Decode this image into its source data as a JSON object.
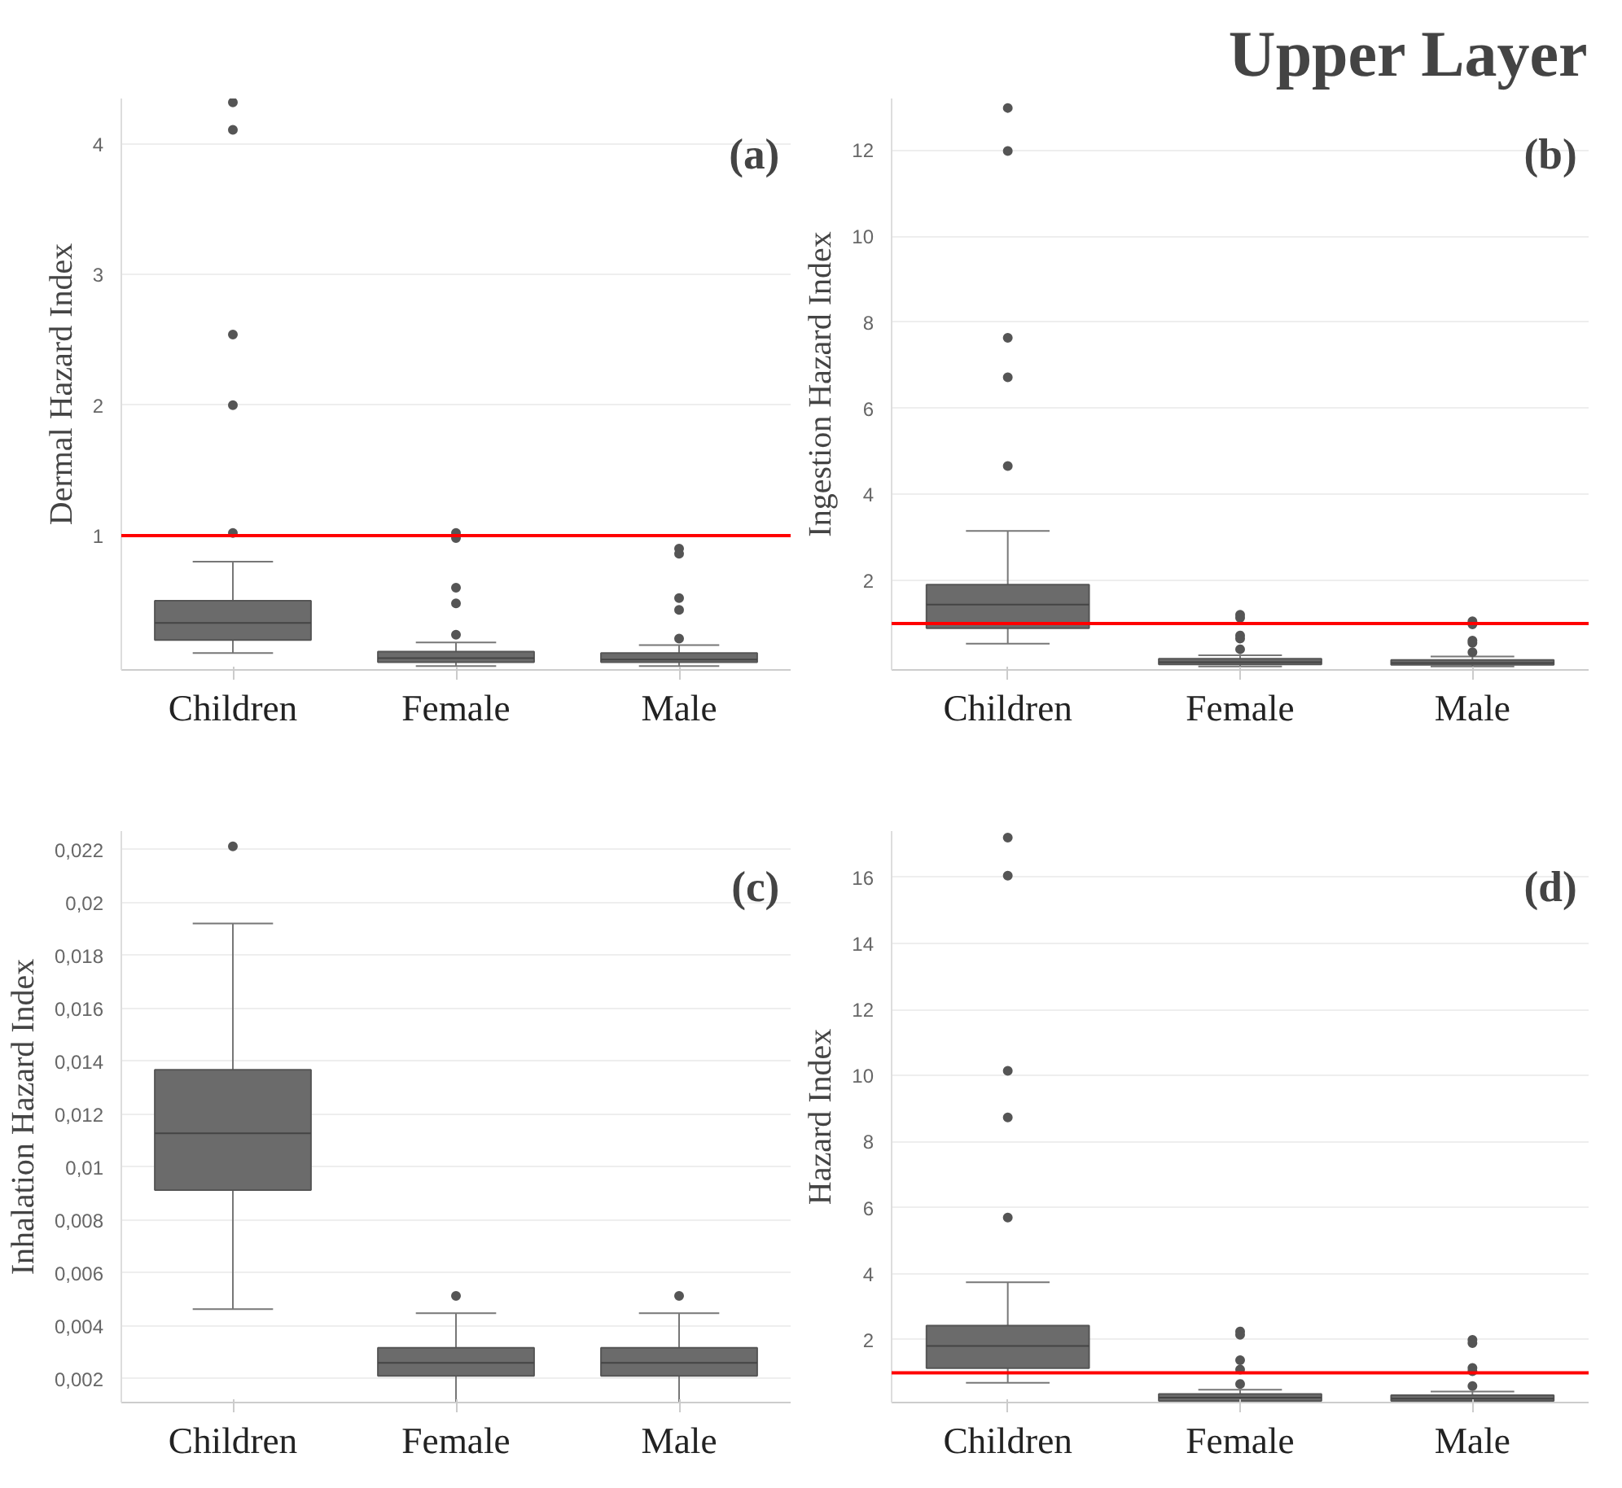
{
  "chart_data": [
    {
      "type": "box",
      "ylabel": "Dermal Hazard Index",
      "categories": [
        "Children",
        "Female",
        "Male"
      ],
      "color": "#6b6b6b",
      "boxes": [
        {
          "low": 0.1,
          "q1": 0.2,
          "median": 0.33,
          "q3": 0.5,
          "high": 0.8,
          "outliers": [
            4.32,
            4.11,
            2.54,
            2.0,
            1.02
          ]
        },
        {
          "low": 0.0,
          "q1": 0.03,
          "median": 0.06,
          "q3": 0.11,
          "high": 0.18,
          "outliers": [
            1.02,
            0.98,
            0.6,
            0.48,
            0.24
          ]
        },
        {
          "low": 0.0,
          "q1": 0.03,
          "median": 0.05,
          "q3": 0.1,
          "high": 0.16,
          "outliers": [
            0.9,
            0.86,
            0.52,
            0.43,
            0.21
          ]
        }
      ],
      "ylim": [
        -0.03,
        4.35
      ],
      "yticks": [
        1,
        2,
        3,
        4
      ],
      "grid": "y",
      "ref_lines": [
        {
          "axis": "y",
          "value": 1,
          "color": "#ff0000"
        }
      ],
      "annotations": [
        "(a)"
      ]
    },
    {
      "type": "box",
      "title": "Upper Layer",
      "ylabel": "Ingestion Hazard Index",
      "categories": [
        "Children",
        "Female",
        "Male"
      ],
      "color": "#6b6b6b",
      "boxes": [
        {
          "low": 0.53,
          "q1": 0.89,
          "median": 1.44,
          "q3": 1.9,
          "high": 3.15,
          "outliers": [
            12.98,
            11.98,
            7.64,
            6.72,
            4.66
          ]
        },
        {
          "low": 0.0,
          "q1": 0.05,
          "median": 0.1,
          "q3": 0.18,
          "high": 0.26,
          "outliers": [
            1.2,
            1.13,
            0.72,
            0.65,
            0.4
          ]
        },
        {
          "low": 0.0,
          "q1": 0.04,
          "median": 0.08,
          "q3": 0.15,
          "high": 0.23,
          "outliers": [
            1.05,
            0.98,
            0.6,
            0.55,
            0.33
          ]
        }
      ],
      "ylim": [
        -0.08,
        13.2
      ],
      "yticks": [
        2,
        4,
        6,
        8,
        10,
        12
      ],
      "grid": "y",
      "ref_lines": [
        {
          "axis": "y",
          "value": 1,
          "color": "#ff0000"
        }
      ],
      "annotations": [
        "(b)"
      ]
    },
    {
      "type": "box",
      "ylabel": "Inhalation Hazard Index",
      "categories": [
        "Children",
        "Female",
        "Male"
      ],
      "color": "#6b6b6b",
      "boxes": [
        {
          "low": 0.00463,
          "q1": 0.00913,
          "median": 0.01128,
          "q3": 0.01368,
          "high": 0.01921,
          "outliers": [
            0.02212
          ]
        },
        {
          "low": 0.0011,
          "q1": 0.00211,
          "median": 0.0026,
          "q3": 0.00317,
          "high": 0.00448,
          "outliers": [
            0.00513
          ]
        },
        {
          "low": 0.0011,
          "q1": 0.00211,
          "median": 0.0026,
          "q3": 0.00317,
          "high": 0.00448,
          "outliers": [
            0.00513
          ]
        }
      ],
      "ylim": [
        0.0011,
        0.0227
      ],
      "yticks": [
        {
          "value": 0.002,
          "label": "0,002"
        },
        {
          "value": 0.004,
          "label": "0,004"
        },
        {
          "value": 0.006,
          "label": "0,006"
        },
        {
          "value": 0.008,
          "label": "0,008"
        },
        {
          "value": 0.01,
          "label": "0,01"
        },
        {
          "value": 0.012,
          "label": "0,012"
        },
        {
          "value": 0.014,
          "label": "0,014"
        },
        {
          "value": 0.016,
          "label": "0,016"
        },
        {
          "value": 0.018,
          "label": "0,018"
        },
        {
          "value": 0.02,
          "label": "0,02"
        },
        {
          "value": 0.022,
          "label": "0,022"
        }
      ],
      "grid": "y",
      "annotations": [
        "(c)"
      ]
    },
    {
      "type": "box",
      "ylabel": "Hazard Index",
      "categories": [
        "Children",
        "Female",
        "Male"
      ],
      "color": "#6b6b6b",
      "boxes": [
        {
          "low": 0.7,
          "q1": 1.14,
          "median": 1.81,
          "q3": 2.43,
          "high": 3.74,
          "outliers": [
            17.2,
            16.05,
            10.14,
            8.73,
            5.7
          ]
        },
        {
          "low": 0.1,
          "q1": 0.15,
          "median": 0.25,
          "q3": 0.36,
          "high": 0.49,
          "outliers": [
            2.25,
            2.15,
            1.38,
            1.1,
            0.66
          ]
        },
        {
          "low": 0.1,
          "q1": 0.15,
          "median": 0.22,
          "q3": 0.32,
          "high": 0.43,
          "outliers": [
            2.0,
            1.9,
            1.15,
            1.05,
            0.6
          ]
        }
      ],
      "ylim": [
        0.1,
        17.4
      ],
      "yticks": [
        2,
        4,
        6,
        8,
        10,
        12,
        14,
        16
      ],
      "grid": "y",
      "ref_lines": [
        {
          "axis": "y",
          "value": 1,
          "color": "#ff0000"
        }
      ],
      "annotations": [
        "(d)"
      ]
    }
  ]
}
